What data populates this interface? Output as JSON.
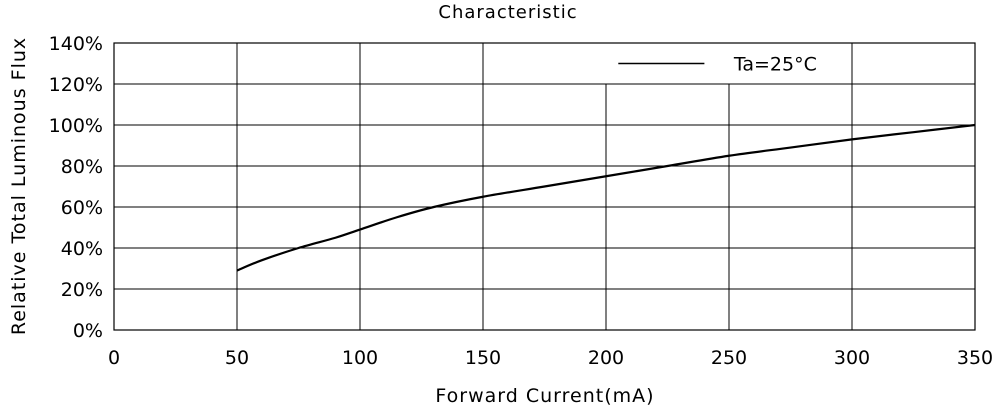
{
  "chart_data": {
    "type": "line",
    "title": "Characteristic",
    "xlabel": "Forward Current(mA)",
    "ylabel": "Relative Total Luminous Flux",
    "xlim": [
      0,
      350
    ],
    "ylim": [
      0,
      140
    ],
    "x_ticks": [
      0,
      50,
      100,
      150,
      200,
      250,
      300,
      350
    ],
    "x_tick_labels": [
      "0",
      "50",
      "100",
      "150",
      "200",
      "250",
      "300",
      "350"
    ],
    "y_ticks": [
      0,
      20,
      40,
      60,
      80,
      100,
      120,
      140
    ],
    "y_tick_labels": [
      "0%",
      "20%",
      "40%",
      "60%",
      "80%",
      "100%",
      "120%",
      "140%"
    ],
    "grid": true,
    "legend": {
      "placement": "top-right",
      "label": "Ta=25°C"
    },
    "series": [
      {
        "name": "Ta=25°C",
        "color": "#000000",
        "x": [
          50,
          60,
          75,
          90,
          100,
          115,
          130,
          150,
          175,
          200,
          225,
          250,
          275,
          300,
          325,
          350
        ],
        "y": [
          29,
          34,
          40,
          45,
          49,
          55,
          60,
          65,
          70,
          75,
          80,
          85,
          89,
          93,
          96.5,
          100
        ]
      }
    ]
  }
}
